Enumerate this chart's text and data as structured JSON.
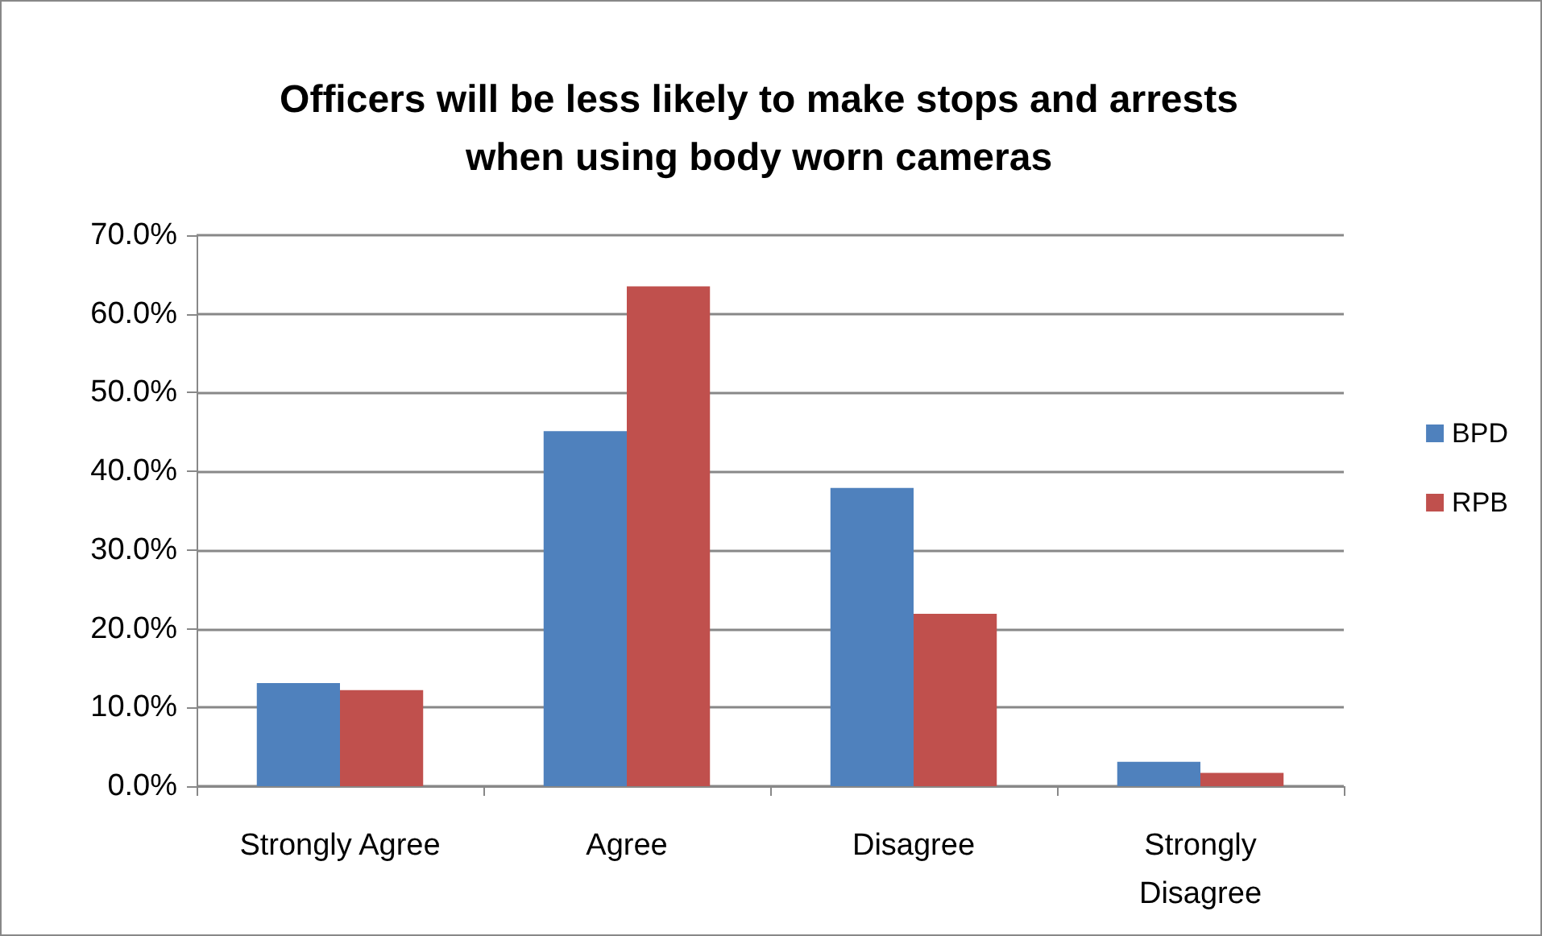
{
  "chart_data": {
    "type": "bar",
    "title": "Officers will be less likely to make stops and arrests when using body worn cameras",
    "categories": [
      "Strongly Agree",
      "Agree",
      "Disagree",
      "Strongly Disagree"
    ],
    "series": [
      {
        "name": "BPD",
        "color": "#4f81bd",
        "values": [
          13.1,
          45.1,
          37.9,
          3.1
        ]
      },
      {
        "name": "RPB",
        "color": "#c0504d",
        "values": [
          12.2,
          63.5,
          21.9,
          1.7
        ]
      }
    ],
    "ylim": [
      0,
      70
    ],
    "yticks": [
      {
        "value": 0,
        "label": "0.0%"
      },
      {
        "value": 10,
        "label": "10.0%"
      },
      {
        "value": 20,
        "label": "20.0%"
      },
      {
        "value": 30,
        "label": "30.0%"
      },
      {
        "value": 40,
        "label": "40.0%"
      },
      {
        "value": 50,
        "label": "50.0%"
      },
      {
        "value": 60,
        "label": "60.0%"
      },
      {
        "value": 70,
        "label": "70.0%"
      }
    ],
    "grid": "y",
    "legend": "right"
  }
}
